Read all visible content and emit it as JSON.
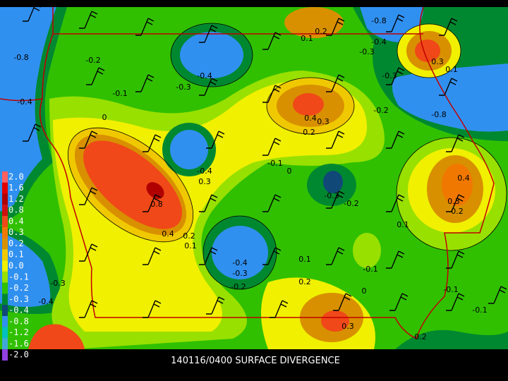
{
  "caption": "140116/0400 SURFACE DIVERGENCE",
  "legend": [
    {
      "label": "2.0",
      "color": "#ff6060"
    },
    {
      "label": "1.6",
      "color": "#e00000"
    },
    {
      "label": "1.2",
      "color": "#b00000"
    },
    {
      "label": "0.8",
      "color": "#d01010"
    },
    {
      "label": "0.4",
      "color": "#f04818"
    },
    {
      "label": "0.3",
      "color": "#f07800"
    },
    {
      "label": "0.2",
      "color": "#d89000"
    },
    {
      "label": "0.1",
      "color": "#f0c800"
    },
    {
      "label": "0.0",
      "color": "#f0f000"
    },
    {
      "label": "-0.1",
      "color": "#98e000"
    },
    {
      "label": "-0.2",
      "color": "#30c000"
    },
    {
      "label": "-0.3",
      "color": "#008830"
    },
    {
      "label": "-0.4",
      "color": "#104878"
    },
    {
      "label": "-0.8",
      "color": "#3090f0"
    },
    {
      "label": "-1.2",
      "color": "#00c0c0"
    },
    {
      "label": "-1.6",
      "color": "#40a8d8"
    },
    {
      "label": "-2.0",
      "color": "#9040e0"
    }
  ],
  "contour_labels": [
    "-0.8",
    "-0.2",
    "-0.4",
    "-0.3",
    "-0.1",
    "0.2",
    "0.1",
    "-0.8",
    "-0.4",
    "-0.3",
    "0.3",
    "0.1",
    "-0.3",
    "-0.2",
    "-0.8",
    "0.4",
    "0.3",
    "0.2",
    "0",
    "-0.1",
    "0",
    "-0.4",
    "0.3",
    "0.8",
    "-0.3",
    "-0.2",
    "0.4",
    "0.3",
    "0.2",
    "0.1",
    "0.4",
    "0.2",
    "0.1",
    "0.1",
    "-0.4",
    "-0.3",
    "-0.2",
    "-0.1",
    "0.2",
    "0",
    "-0.3",
    "-0.4",
    "0.3",
    "-0.1",
    "-0.1",
    "0.2",
    "-0.4"
  ]
}
